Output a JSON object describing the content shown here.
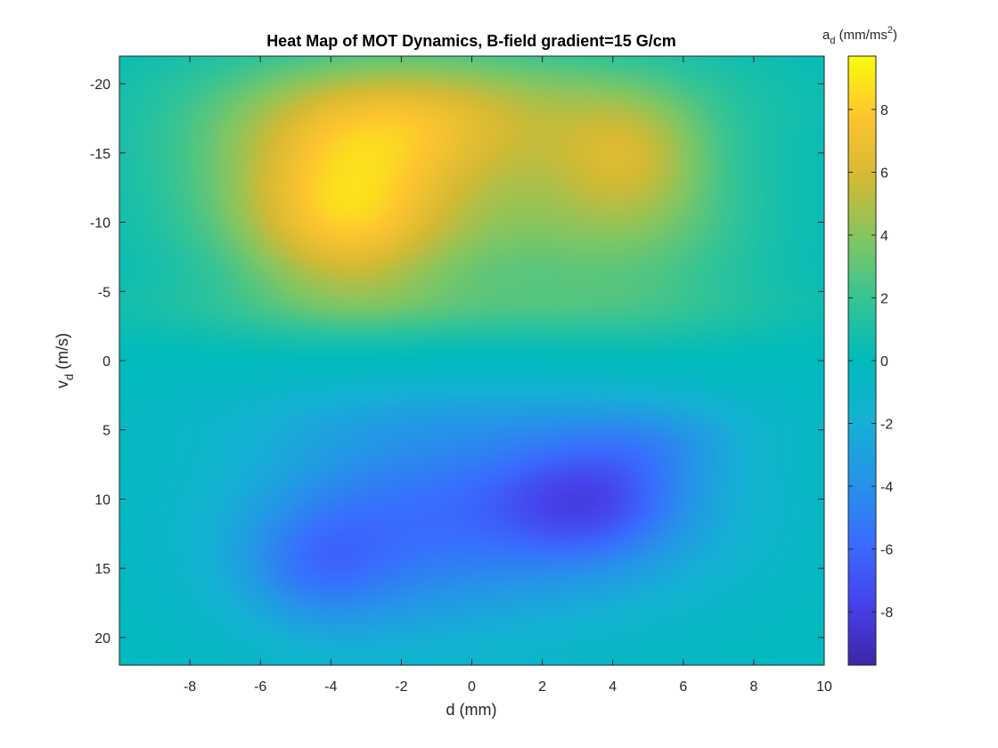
{
  "chart_data": {
    "type": "heatmap",
    "title": "Heat Map of MOT Dynamics, B-field gradient=15 G/cm",
    "xlabel": "d (mm)",
    "ylabel": {
      "main": "v",
      "sub": "d",
      "rest": " (m/s)"
    },
    "colorbar_label": {
      "main": "a",
      "sub": "d",
      "rest": " (mm/ms",
      "sup": "2",
      "end": ")"
    },
    "xlim": [
      -10,
      10
    ],
    "ylim": [
      -22,
      22
    ],
    "y_reversed": true,
    "clim": [
      -9.7,
      9.7
    ],
    "colormap": "parula",
    "x_ticks": [
      "-8",
      "-6",
      "-4",
      "-2",
      "0",
      "2",
      "4",
      "6",
      "8",
      "10"
    ],
    "y_ticks": [
      "-20",
      "-15",
      "-10",
      "-5",
      "0",
      "5",
      "10",
      "15",
      "20"
    ],
    "colorbar_ticks": [
      "8",
      "6",
      "4",
      "2",
      "0",
      "-2",
      "-4",
      "-6",
      "-8"
    ],
    "features": [
      {
        "x": -3.6,
        "y": -10,
        "sx": 2.0,
        "sy": 4.2,
        "a": 4.2
      },
      {
        "x": -4.5,
        "y": -13,
        "sx": 3.2,
        "sy": 5.5,
        "a": 3.5
      },
      {
        "x": -2.0,
        "y": -17,
        "sx": 2.8,
        "sy": 3.0,
        "a": 2.5
      },
      {
        "x": 4.5,
        "y": -15,
        "sx": 1.5,
        "sy": 3.2,
        "a": 2.8
      },
      {
        "x": 5.0,
        "y": -10,
        "sx": 2.5,
        "sy": 5.0,
        "a": 2.0
      },
      {
        "x": 1.0,
        "y": -12,
        "sx": 3.5,
        "sy": 6.0,
        "a": 2.6
      },
      {
        "x": 0.0,
        "y": -19,
        "sx": 5.5,
        "sy": 3.0,
        "a": 2.0
      },
      {
        "x": -0.5,
        "y": -3.8,
        "sx": 7.0,
        "sy": 1.6,
        "a": 1.2
      },
      {
        "x": 3.4,
        "y": 10,
        "sx": 1.8,
        "sy": 3.0,
        "a": -3.4
      },
      {
        "x": 2.5,
        "y": 10,
        "sx": 3.5,
        "sy": 5.0,
        "a": -3.2
      },
      {
        "x": -4.5,
        "y": 15,
        "sx": 1.5,
        "sy": 3.0,
        "a": -2.2
      },
      {
        "x": -3.0,
        "y": 12,
        "sx": 3.0,
        "sy": 6.0,
        "a": -3.0
      },
      {
        "x": 0.0,
        "y": 13,
        "sx": 6.0,
        "sy": 6.5,
        "a": -1.5
      },
      {
        "x": 5.5,
        "y": 6,
        "sx": 1.5,
        "sy": 2.0,
        "a": -1.4
      },
      {
        "x": 0.5,
        "y": 4.0,
        "sx": 6.5,
        "sy": 1.8,
        "a": -0.9
      }
    ]
  }
}
